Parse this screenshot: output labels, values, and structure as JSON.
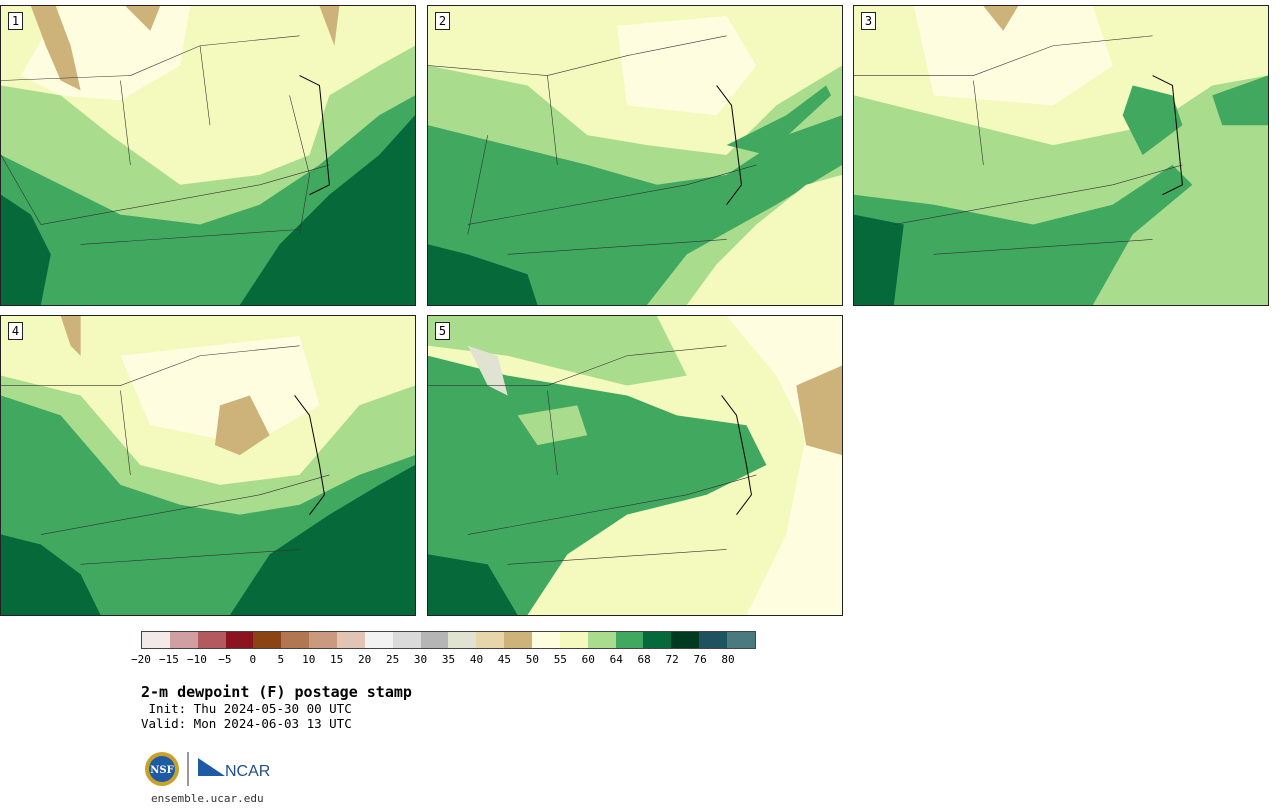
{
  "panels": [
    {
      "number": "1"
    },
    {
      "number": "2"
    },
    {
      "number": "3"
    },
    {
      "number": "4"
    },
    {
      "number": "5"
    }
  ],
  "colorbar": {
    "colors": [
      "#f3e9e9",
      "#d19ea1",
      "#b45a5f",
      "#8b1420",
      "#8a4512",
      "#b17750",
      "#c99a80",
      "#e2c4b4",
      "#f2f2f2",
      "#dadada",
      "#b5b5b5",
      "#e1e3d2",
      "#e8d6ab",
      "#cdb27a",
      "#fffde0",
      "#f4f9be",
      "#a9dc8d",
      "#41a860",
      "#05693a",
      "#003a20",
      "#1e5260",
      "#4a7a80"
    ],
    "ticks": [
      "−20",
      "−15",
      "−10",
      "−5",
      "0",
      "5",
      "10",
      "15",
      "20",
      "25",
      "30",
      "35",
      "40",
      "45",
      "50",
      "55",
      "60",
      "64",
      "68",
      "72",
      "76",
      "80"
    ]
  },
  "title": "2-m dewpoint (F) postage stamp",
  "init": " Init: Thu 2024-05-30 00 UTC",
  "valid": "Valid: Mon 2024-06-03 13 UTC",
  "logos": {
    "nsf": "NSF",
    "ncar": "NCAR"
  },
  "site": "ensemble.ucar.edu"
}
